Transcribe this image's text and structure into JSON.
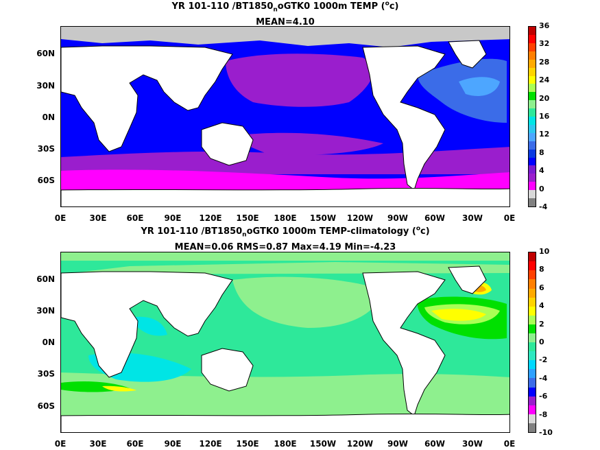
{
  "top_panel": {
    "title_line1_main": "YR 101-110 /BT1850",
    "title_line1_sub": "n",
    "title_line1_rest": "oGTK0 1000m TEMP (",
    "title_line1_sup": "o",
    "title_line1_end": "c)",
    "title_line2": "MEAN=4.10",
    "colorbar_labels": [
      "-4",
      "0",
      "4",
      "8",
      "12",
      "16",
      "20",
      "24",
      "28",
      "32",
      "36"
    ],
    "colorbar_colors": [
      "#808080",
      "#d8d8d8",
      "#ff00ff",
      "#9a1ecd",
      "#7b1bd1",
      "#0000ff",
      "#0a3ae0",
      "#3b6ce8",
      "#4da6ff",
      "#2dc8f0",
      "#00e5e5",
      "#2ee89a",
      "#8ef08e",
      "#00e000",
      "#aaff55",
      "#ffff00",
      "#ffd400",
      "#ffaa00",
      "#ff7f00",
      "#ff4000",
      "#ff0000",
      "#c00000"
    ]
  },
  "bottom_panel": {
    "title_line1_main": "YR 101-110 /BT1850",
    "title_line1_sub": "n",
    "title_line1_rest": "oGTK0 1000m TEMP-climatology (",
    "title_line1_sup": "o",
    "title_line1_end": "c)",
    "title_line2": "MEAN=0.06   RMS=0.87   Max=4.19   Min=-4.23",
    "colorbar_labels": [
      "-10",
      "-8",
      "-6",
      "-4",
      "-2",
      "0",
      "2",
      "4",
      "6",
      "8",
      "10"
    ],
    "colorbar_colors": [
      "#808080",
      "#d8d8d8",
      "#ff00ff",
      "#9a1ecd",
      "#0000ff",
      "#3b6ce8",
      "#2da0ff",
      "#00d8ff",
      "#2ee8c0",
      "#2ee89a",
      "#8ef08e",
      "#00e000",
      "#aaff55",
      "#ffff00",
      "#ffd400",
      "#ffaa00",
      "#ff7f00",
      "#ff4000",
      "#ff0000",
      "#c00000"
    ]
  },
  "axes": {
    "lat_labels": [
      "60N",
      "30N",
      "0N",
      "30S",
      "60S"
    ],
    "lon_labels": [
      "0E",
      "30E",
      "60E",
      "90E",
      "120E",
      "150E",
      "180E",
      "150W",
      "120W",
      "90W",
      "60W",
      "30W",
      "0E"
    ]
  }
}
